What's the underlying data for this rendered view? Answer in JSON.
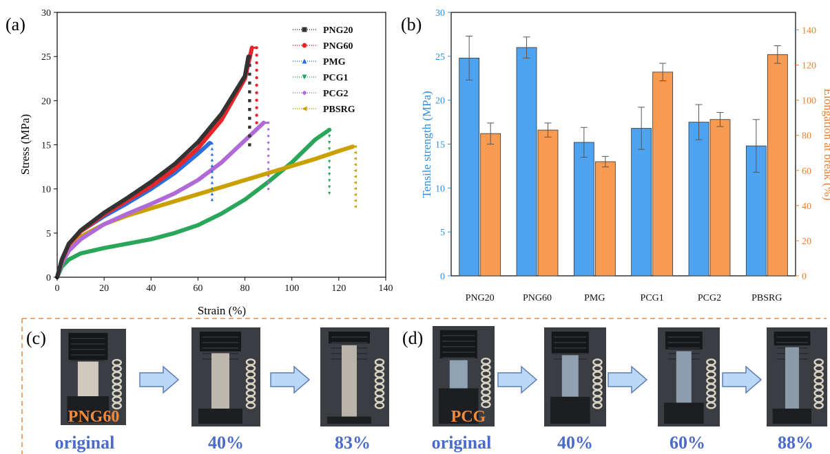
{
  "panel_labels": {
    "a": "(a)",
    "b": "(b)",
    "c": "(c)",
    "d": "(d)"
  },
  "colors": {
    "PNG20": "#333333",
    "PNG60": "#e8262a",
    "PMG": "#2a6fdb",
    "PCG1": "#2aa65a",
    "PCG2": "#b06ad8",
    "PBSRG": "#c9a000",
    "bar_left": "#4da3f0",
    "bar_right": "#f79a52",
    "axis_left": "#2f8fe0",
    "axis_right": "#f07d2a",
    "dashed_border": "#f08a3c",
    "caption": "#4a6cc8",
    "arrow_fill": "#bcd8f8",
    "arrow_stroke": "#5a7fb0"
  },
  "chart_data": [
    {
      "type": "line",
      "panel": "(a)",
      "xlabel": "Strain (%)",
      "ylabel": "Stress (MPa)",
      "xlim": [
        0,
        140
      ],
      "ylim": [
        0,
        30
      ],
      "xticks": [
        "0",
        "20",
        "40",
        "60",
        "80",
        "100",
        "120",
        "140"
      ],
      "yticks": [
        "0",
        "5",
        "10",
        "15",
        "20",
        "25",
        "30"
      ],
      "legend_position": "top-right",
      "series": [
        {
          "name": "PNG20",
          "marker": "square",
          "x": [
            0,
            2,
            5,
            10,
            20,
            30,
            40,
            50,
            60,
            70,
            80,
            81.5
          ],
          "y": [
            0,
            2.0,
            3.8,
            5.3,
            7.3,
            9.0,
            10.8,
            12.8,
            15.3,
            18.5,
            22.8,
            25.0
          ],
          "drop_x": 82,
          "drop_y": [
            25.0,
            15.0
          ]
        },
        {
          "name": "PNG60",
          "marker": "circle",
          "x": [
            0,
            2,
            5,
            10,
            20,
            30,
            40,
            50,
            60,
            70,
            80,
            83
          ],
          "y": [
            0,
            1.9,
            3.7,
            5.2,
            7.1,
            8.7,
            10.3,
            12.2,
            14.6,
            17.8,
            22.5,
            26.0
          ],
          "drop_x": 85,
          "drop_y": [
            26.0,
            17.5
          ]
        },
        {
          "name": "PMG",
          "marker": "triangle-up",
          "x": [
            0,
            2,
            5,
            10,
            20,
            30,
            40,
            50,
            60,
            65
          ],
          "y": [
            0,
            2.0,
            3.8,
            5.2,
            6.9,
            8.4,
            10.0,
            11.8,
            14.0,
            15.2
          ],
          "drop_x": 66,
          "drop_y": [
            15.2,
            8.8
          ]
        },
        {
          "name": "PCG1",
          "marker": "triangle-down",
          "x": [
            0,
            2,
            5,
            10,
            20,
            30,
            40,
            50,
            60,
            70,
            80,
            90,
            100,
            110,
            116
          ],
          "y": [
            0,
            1.2,
            2.0,
            2.7,
            3.3,
            3.8,
            4.3,
            5.0,
            5.9,
            7.2,
            8.8,
            10.8,
            13.0,
            15.6,
            16.7
          ],
          "drop_x": 116,
          "drop_y": [
            16.7,
            9.5
          ]
        },
        {
          "name": "PCG2",
          "marker": "diamond",
          "x": [
            0,
            2,
            5,
            10,
            20,
            30,
            40,
            50,
            60,
            70,
            80,
            88
          ],
          "y": [
            0,
            1.6,
            3.0,
            4.3,
            6.0,
            7.2,
            8.3,
            9.5,
            11.0,
            13.0,
            15.5,
            17.5
          ],
          "drop_x": 90,
          "drop_y": [
            17.5,
            10.0
          ]
        },
        {
          "name": "PBSRG",
          "marker": "triangle-left",
          "x": [
            0,
            2,
            5,
            10,
            20,
            30,
            40,
            50,
            60,
            70,
            80,
            90,
            100,
            110,
            120,
            126
          ],
          "y": [
            0,
            1.8,
            3.2,
            4.6,
            6.0,
            7.0,
            7.8,
            8.6,
            9.4,
            10.2,
            11.0,
            11.8,
            12.6,
            13.4,
            14.3,
            14.8
          ],
          "drop_x": 127,
          "drop_y": [
            14.8,
            8.0
          ]
        }
      ]
    },
    {
      "type": "bar",
      "panel": "(b)",
      "categories": [
        "PNG20",
        "PNG60",
        "PMG",
        "PCG1",
        "PCG2",
        "PBSRG"
      ],
      "ylabel": "Tensile strength (MPa)",
      "y2label": "Elongation at break (%)",
      "ylim": [
        0,
        30
      ],
      "y2lim": [
        0,
        150
      ],
      "yticks": [
        "0",
        "5",
        "10",
        "15",
        "20",
        "25",
        "30"
      ],
      "y2ticks": [
        "0",
        "20",
        "40",
        "60",
        "80",
        "100",
        "120",
        "140"
      ],
      "series": [
        {
          "name": "Tensile strength",
          "axis": "left",
          "values": [
            24.8,
            26.0,
            15.2,
            16.8,
            17.5,
            14.8
          ],
          "errors": [
            2.5,
            1.2,
            1.7,
            2.4,
            2.0,
            3.0
          ]
        },
        {
          "name": "Elongation at break",
          "axis": "right",
          "values": [
            81,
            83,
            65,
            116,
            89,
            126
          ],
          "errors": [
            6,
            4,
            3,
            5,
            4,
            5
          ]
        }
      ]
    }
  ],
  "photos": {
    "c": {
      "sample_label": "PNG60",
      "captions": [
        "original",
        "40%",
        "83%"
      ]
    },
    "d": {
      "sample_label": "PCG",
      "captions": [
        "original",
        "40%",
        "60%",
        "88%"
      ]
    }
  }
}
